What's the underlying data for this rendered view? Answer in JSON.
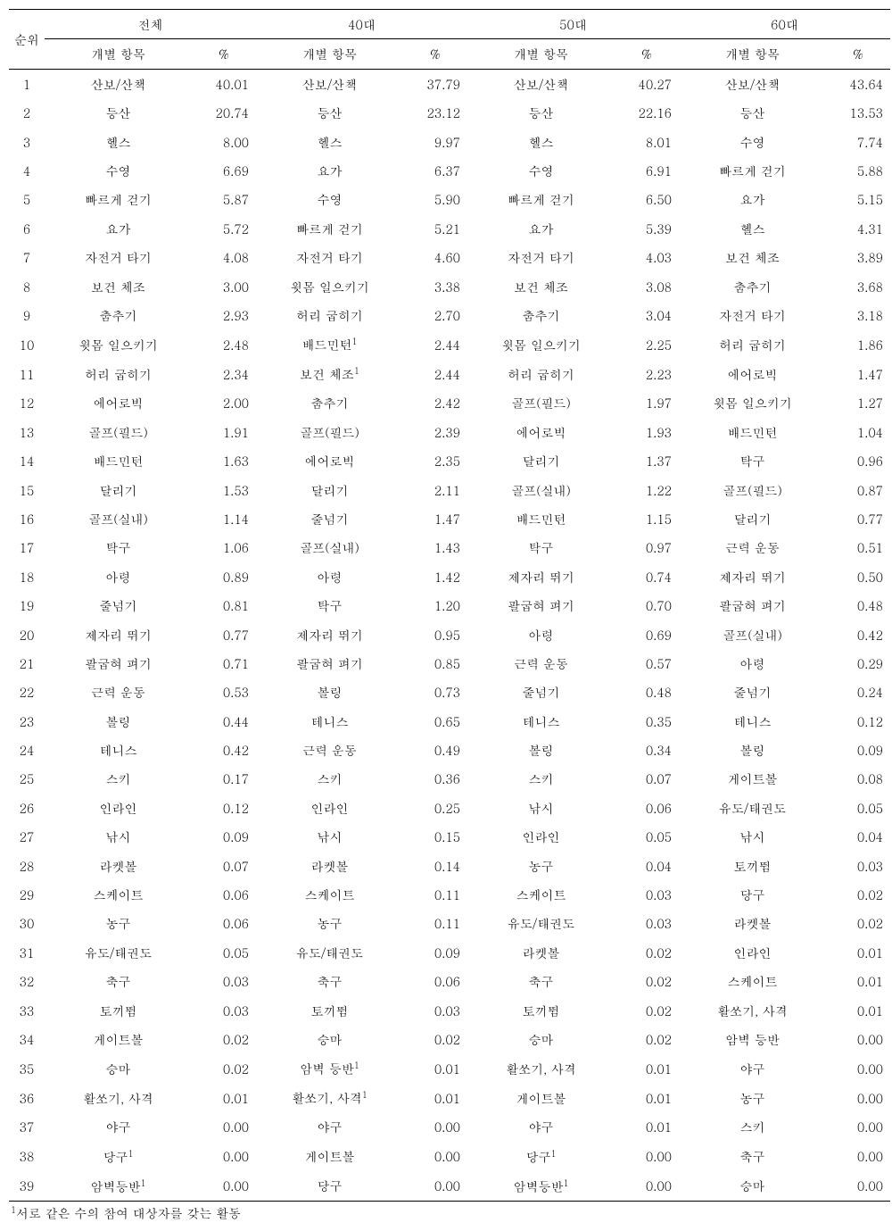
{
  "headers": {
    "rank": "순위",
    "groups": [
      "전체",
      "40대",
      "50대",
      "60대"
    ],
    "item_label": "개별 항목",
    "pct_label": "%"
  },
  "rows": [
    {
      "rank": "1",
      "g0_item": "산보/산책",
      "g0_pct": "40.01",
      "g1_item": "산보/산책",
      "g1_pct": "37.79",
      "g2_item": "산보/산책",
      "g2_pct": "40.27",
      "g3_item": "산보/산책",
      "g3_pct": "43.64"
    },
    {
      "rank": "2",
      "g0_item": "등산",
      "g0_pct": "20.74",
      "g1_item": "등산",
      "g1_pct": "23.12",
      "g2_item": "등산",
      "g2_pct": "22.16",
      "g3_item": "등산",
      "g3_pct": "13.53"
    },
    {
      "rank": "3",
      "g0_item": "헬스",
      "g0_pct": "8.00",
      "g1_item": "헬스",
      "g1_pct": "9.97",
      "g2_item": "헬스",
      "g2_pct": "8.01",
      "g3_item": "수영",
      "g3_pct": "7.74"
    },
    {
      "rank": "4",
      "g0_item": "수영",
      "g0_pct": "6.69",
      "g1_item": "요가",
      "g1_pct": "6.37",
      "g2_item": "수영",
      "g2_pct": "6.91",
      "g3_item": "빠르게 걷기",
      "g3_pct": "5.88"
    },
    {
      "rank": "5",
      "g0_item": "빠르게 걷기",
      "g0_pct": "5.87",
      "g1_item": "수영",
      "g1_pct": "5.90",
      "g2_item": "빠르게 걷기",
      "g2_pct": "6.50",
      "g3_item": "요가",
      "g3_pct": "5.15"
    },
    {
      "rank": "6",
      "g0_item": "요가",
      "g0_pct": "5.72",
      "g1_item": "빠르게 걷기",
      "g1_pct": "5.21",
      "g2_item": "요가",
      "g2_pct": "5.39",
      "g3_item": "헬스",
      "g3_pct": "4.31"
    },
    {
      "rank": "7",
      "g0_item": "자전거 타기",
      "g0_pct": "4.08",
      "g1_item": "자전거 타기",
      "g1_pct": "4.60",
      "g2_item": "자전거 타기",
      "g2_pct": "4.03",
      "g3_item": "보건 체조",
      "g3_pct": "3.89"
    },
    {
      "rank": "8",
      "g0_item": "보건 체조",
      "g0_pct": "3.00",
      "g1_item": "윗몸 일으키기",
      "g1_pct": "3.38",
      "g2_item": "보건 체조",
      "g2_pct": "3.08",
      "g3_item": "춤추기",
      "g3_pct": "3.68"
    },
    {
      "rank": "9",
      "g0_item": "춤추기",
      "g0_pct": "2.93",
      "g1_item": "허리 굽히기",
      "g1_pct": "2.70",
      "g2_item": "춤추기",
      "g2_pct": "3.04",
      "g3_item": "자전거 타기",
      "g3_pct": "3.18"
    },
    {
      "rank": "10",
      "g0_item": "윗몸 일으키기",
      "g0_pct": "2.48",
      "g1_item": "배드민턴",
      "g1_sup": "1",
      "g1_pct": "2.44",
      "g2_item": "윗몸 일으키기",
      "g2_pct": "2.25",
      "g3_item": "허리 굽히기",
      "g3_pct": "1.86"
    },
    {
      "rank": "11",
      "g0_item": "허리 굽히기",
      "g0_pct": "2.34",
      "g1_item": "보건 체조",
      "g1_sup": "1",
      "g1_pct": "2.44",
      "g2_item": "허리 굽히기",
      "g2_pct": "2.23",
      "g3_item": "에어로빅",
      "g3_pct": "1.47"
    },
    {
      "rank": "12",
      "g0_item": "에어로빅",
      "g0_pct": "2.00",
      "g1_item": "춤추기",
      "g1_pct": "2.42",
      "g2_item": "골프(필드)",
      "g2_pct": "1.97",
      "g3_item": "윗몸 일으키기",
      "g3_pct": "1.27"
    },
    {
      "rank": "13",
      "g0_item": "골프(필드)",
      "g0_pct": "1.91",
      "g1_item": "골프(필드)",
      "g1_pct": "2.39",
      "g2_item": "에어로빅",
      "g2_pct": "1.93",
      "g3_item": "배드민턴",
      "g3_pct": "1.04"
    },
    {
      "rank": "14",
      "g0_item": "배드민턴",
      "g0_pct": "1.63",
      "g1_item": "에어로빅",
      "g1_pct": "2.35",
      "g2_item": "달리기",
      "g2_pct": "1.37",
      "g3_item": "탁구",
      "g3_pct": "0.96"
    },
    {
      "rank": "15",
      "g0_item": "달리기",
      "g0_pct": "1.53",
      "g1_item": "달리기",
      "g1_pct": "2.11",
      "g2_item": "골프(실내)",
      "g2_pct": "1.22",
      "g3_item": "골프(필드)",
      "g3_pct": "0.87"
    },
    {
      "rank": "16",
      "g0_item": "골프(실내)",
      "g0_pct": "1.14",
      "g1_item": "줄넘기",
      "g1_pct": "1.47",
      "g2_item": "배드민턴",
      "g2_pct": "1.15",
      "g3_item": "달리기",
      "g3_pct": "0.77"
    },
    {
      "rank": "17",
      "g0_item": "탁구",
      "g0_pct": "1.06",
      "g1_item": "골프(실내)",
      "g1_pct": "1.43",
      "g2_item": "탁구",
      "g2_pct": "0.97",
      "g3_item": "근력 운동",
      "g3_pct": "0.51"
    },
    {
      "rank": "18",
      "g0_item": "아령",
      "g0_pct": "0.89",
      "g1_item": "아령",
      "g1_pct": "1.42",
      "g2_item": "제자리 뛰기",
      "g2_pct": "0.74",
      "g3_item": "제자리 뛰기",
      "g3_pct": "0.50"
    },
    {
      "rank": "19",
      "g0_item": "줄넘기",
      "g0_pct": "0.81",
      "g1_item": "탁구",
      "g1_pct": "1.20",
      "g2_item": "팔굽혀 펴기",
      "g2_pct": "0.70",
      "g3_item": "팔굽혀 펴기",
      "g3_pct": "0.48"
    },
    {
      "rank": "20",
      "g0_item": "제자리 뛰기",
      "g0_pct": "0.77",
      "g1_item": "제자리 뛰기",
      "g1_pct": "0.95",
      "g2_item": "아령",
      "g2_pct": "0.69",
      "g3_item": "골프(실내)",
      "g3_pct": "0.42"
    },
    {
      "rank": "21",
      "g0_item": "팔굽혀 펴기",
      "g0_pct": "0.71",
      "g1_item": "팔굽혀 펴기",
      "g1_pct": "0.85",
      "g2_item": "근력 운동",
      "g2_pct": "0.57",
      "g3_item": "아령",
      "g3_pct": "0.29"
    },
    {
      "rank": "22",
      "g0_item": "근력 운동",
      "g0_pct": "0.53",
      "g1_item": "볼링",
      "g1_pct": "0.73",
      "g2_item": "줄넘기",
      "g2_pct": "0.48",
      "g3_item": "줄넘기",
      "g3_pct": "0.24"
    },
    {
      "rank": "23",
      "g0_item": "볼링",
      "g0_pct": "0.44",
      "g1_item": "테니스",
      "g1_pct": "0.65",
      "g2_item": "테니스",
      "g2_pct": "0.35",
      "g3_item": "테니스",
      "g3_pct": "0.12"
    },
    {
      "rank": "24",
      "g0_item": "테니스",
      "g0_pct": "0.42",
      "g1_item": "근력 운동",
      "g1_pct": "0.49",
      "g2_item": "볼링",
      "g2_pct": "0.34",
      "g3_item": "볼링",
      "g3_pct": "0.09"
    },
    {
      "rank": "25",
      "g0_item": "스키",
      "g0_pct": "0.17",
      "g1_item": "스키",
      "g1_pct": "0.36",
      "g2_item": "스키",
      "g2_pct": "0.07",
      "g3_item": "게이트볼",
      "g3_pct": "0.08"
    },
    {
      "rank": "26",
      "g0_item": "인라인",
      "g0_pct": "0.12",
      "g1_item": "인라인",
      "g1_pct": "0.25",
      "g2_item": "낚시",
      "g2_pct": "0.06",
      "g3_item": "유도/태권도",
      "g3_pct": "0.05"
    },
    {
      "rank": "27",
      "g0_item": "낚시",
      "g0_pct": "0.09",
      "g1_item": "낚시",
      "g1_pct": "0.15",
      "g2_item": "인라인",
      "g2_pct": "0.05",
      "g3_item": "낚시",
      "g3_pct": "0.04"
    },
    {
      "rank": "28",
      "g0_item": "라켓볼",
      "g0_pct": "0.07",
      "g1_item": "라켓볼",
      "g1_pct": "0.14",
      "g2_item": "농구",
      "g2_pct": "0.04",
      "g3_item": "토끼뜀",
      "g3_pct": "0.03"
    },
    {
      "rank": "29",
      "g0_item": "스케이트",
      "g0_pct": "0.06",
      "g1_item": "스케이트",
      "g1_pct": "0.11",
      "g2_item": "스케이트",
      "g2_pct": "0.03",
      "g3_item": "당구",
      "g3_pct": "0.02"
    },
    {
      "rank": "30",
      "g0_item": "농구",
      "g0_pct": "0.06",
      "g1_item": "농구",
      "g1_pct": "0.11",
      "g2_item": "유도/태권도",
      "g2_pct": "0.03",
      "g3_item": "라켓볼",
      "g3_pct": "0.02"
    },
    {
      "rank": "31",
      "g0_item": "유도/태권도",
      "g0_pct": "0.05",
      "g1_item": "유도/태권도",
      "g1_pct": "0.09",
      "g2_item": "라켓볼",
      "g2_pct": "0.02",
      "g3_item": "인라인",
      "g3_pct": "0.01"
    },
    {
      "rank": "32",
      "g0_item": "축구",
      "g0_pct": "0.03",
      "g1_item": "축구",
      "g1_pct": "0.06",
      "g2_item": "축구",
      "g2_pct": "0.02",
      "g3_item": "스케이트",
      "g3_pct": "0.01"
    },
    {
      "rank": "33",
      "g0_item": "토끼뜀",
      "g0_pct": "0.03",
      "g1_item": "토끼뜀",
      "g1_pct": "0.03",
      "g2_item": "토끼뜀",
      "g2_pct": "0.02",
      "g3_item": "활쏘기, 사격",
      "g3_pct": "0.01"
    },
    {
      "rank": "34",
      "g0_item": "게이트볼",
      "g0_pct": "0.02",
      "g1_item": "승마",
      "g1_pct": "0.02",
      "g2_item": "승마",
      "g2_pct": "0.02",
      "g3_item": "암벽 등반",
      "g3_pct": "0.00"
    },
    {
      "rank": "35",
      "g0_item": "승마",
      "g0_pct": "0.02",
      "g1_item": "암벽 등반",
      "g1_sup": "1",
      "g1_pct": "0.01",
      "g2_item": "활쏘기, 사격",
      "g2_pct": "0.01",
      "g3_item": "야구",
      "g3_pct": "0.00"
    },
    {
      "rank": "36",
      "g0_item": "활쏘기, 사격",
      "g0_pct": "0.01",
      "g1_item": "활쏘기, 사격",
      "g1_sup": "1",
      "g1_pct": "0.01",
      "g2_item": "게이트볼",
      "g2_pct": "0.01",
      "g3_item": "농구",
      "g3_pct": "0.00"
    },
    {
      "rank": "37",
      "g0_item": "야구",
      "g0_pct": "0.00",
      "g1_item": "야구",
      "g1_pct": "0.00",
      "g2_item": "야구",
      "g2_pct": "0.01",
      "g3_item": "스키",
      "g3_pct": "0.00"
    },
    {
      "rank": "38",
      "g0_item": "당구",
      "g0_sup": "1",
      "g0_pct": "0.00",
      "g1_item": "게이트볼",
      "g1_pct": "0.00",
      "g2_item": "당구",
      "g2_sup": "1",
      "g2_pct": "0.00",
      "g3_item": "축구",
      "g3_pct": "0.00"
    },
    {
      "rank": "39",
      "g0_item": "암벽등반",
      "g0_sup": "1",
      "g0_pct": "0.00",
      "g1_item": "당구",
      "g1_pct": "0.00",
      "g2_item": "암벽등반",
      "g2_sup": "1",
      "g2_pct": "0.00",
      "g3_item": "승마",
      "g3_pct": "0.00"
    }
  ],
  "footnote_marker": "1",
  "footnote_text": "서로 같은 수의 참여 대상자를 갖는 활동",
  "column_widths": {
    "rank": "40px",
    "item": "150px",
    "pct": "70px"
  }
}
